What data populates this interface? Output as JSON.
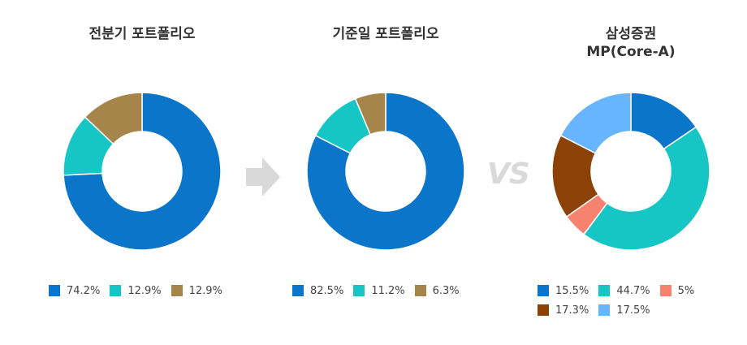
{
  "separator_text": "VS",
  "chart_data": [
    {
      "type": "pie",
      "title": "전분기 포트폴리오",
      "donut": true,
      "slices": [
        {
          "value": 74.2,
          "label": "74.2%",
          "color": "#0a75c9"
        },
        {
          "value": 12.9,
          "label": "12.9%",
          "color": "#16c6c4"
        },
        {
          "value": 12.9,
          "label": "12.9%",
          "color": "#a6854a"
        }
      ]
    },
    {
      "type": "pie",
      "title": "기준일 포트폴리오",
      "donut": true,
      "slices": [
        {
          "value": 82.5,
          "label": "82.5%",
          "color": "#0a75c9"
        },
        {
          "value": 11.2,
          "label": "11.2%",
          "color": "#16c6c4"
        },
        {
          "value": 6.3,
          "label": "6.3%",
          "color": "#a6854a"
        }
      ]
    },
    {
      "type": "pie",
      "title": "삼성증권",
      "subtitle": "MP(Core-A)",
      "donut": true,
      "slices": [
        {
          "value": 15.5,
          "label": "15.5%",
          "color": "#0a75c9"
        },
        {
          "value": 44.7,
          "label": "44.7%",
          "color": "#16c6c4"
        },
        {
          "value": 5,
          "label": "5%",
          "color": "#f7836f"
        },
        {
          "value": 17.3,
          "label": "17.3%",
          "color": "#8c4107"
        },
        {
          "value": 17.5,
          "label": "17.5%",
          "color": "#68b5ff"
        }
      ]
    }
  ]
}
